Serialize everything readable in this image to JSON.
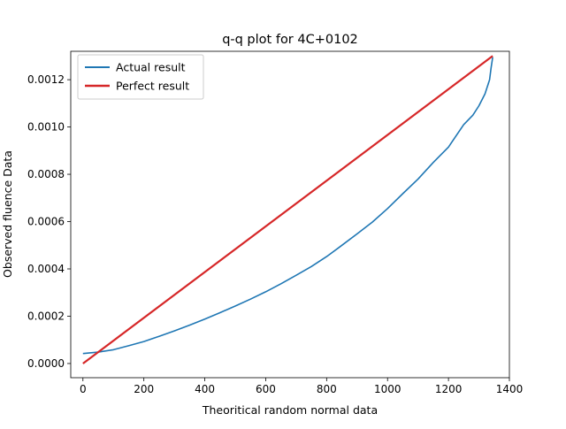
{
  "chart_data": {
    "type": "line",
    "title": "q-q plot for 4C+0102",
    "xlabel": "Theoritical random normal data",
    "ylabel": "Observed fluence Data",
    "xlim": [
      -40,
      1400
    ],
    "ylim": [
      -6e-05,
      0.00132
    ],
    "x_ticks": [
      0,
      200,
      400,
      600,
      800,
      1000,
      1200,
      1400
    ],
    "x_tick_labels": [
      "0",
      "200",
      "400",
      "600",
      "800",
      "1000",
      "1200",
      "1400"
    ],
    "y_ticks": [
      0,
      0.0002,
      0.0004,
      0.0006,
      0.0008,
      0.001,
      0.0012
    ],
    "y_tick_labels": [
      "0.0000",
      "0.0002",
      "0.0004",
      "0.0006",
      "0.0008",
      "0.0010",
      "0.0012"
    ],
    "grid": false,
    "legend_position": "top-left",
    "series": [
      {
        "name": "Actual result",
        "color": "#1f77b4",
        "x": [
          0,
          50,
          100,
          150,
          200,
          250,
          300,
          350,
          400,
          450,
          500,
          550,
          600,
          650,
          700,
          750,
          800,
          850,
          900,
          950,
          1000,
          1050,
          1100,
          1150,
          1200,
          1250,
          1280,
          1300,
          1320,
          1335,
          1340,
          1345
        ],
        "y": [
          4.2e-05,
          4.8e-05,
          5.8e-05,
          7.5e-05,
          9.3e-05,
          0.000115,
          0.000138,
          0.000162,
          0.000188,
          0.000215,
          0.000243,
          0.000272,
          0.000303,
          0.000337,
          0.000373,
          0.00041,
          0.000452,
          0.0005,
          0.000548,
          0.000598,
          0.000655,
          0.000718,
          0.00078,
          0.00085,
          0.000915,
          0.00101,
          0.00105,
          0.00109,
          0.00114,
          0.0012,
          0.00125,
          0.001295
        ]
      },
      {
        "name": "Perfect result",
        "color": "#d62728",
        "x": [
          0,
          1345
        ],
        "y": [
          0,
          0.0013
        ]
      }
    ]
  }
}
